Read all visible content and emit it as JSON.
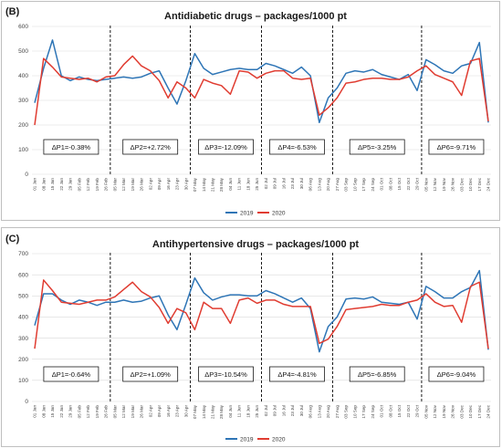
{
  "chart_data": [
    {
      "panel": "(B)",
      "type": "line",
      "title": "Antidiabetic drugs – packages/1000 pt",
      "ylim": [
        0,
        600
      ],
      "yticks": [
        0,
        100,
        200,
        300,
        400,
        500,
        600
      ],
      "grid": true,
      "legend": "bottom-center",
      "x": [
        "01 Jan",
        "08 Jan",
        "15 Jan",
        "22 Jan",
        "29 Jan",
        "05 Feb",
        "12 Feb",
        "19 Feb",
        "26 Feb",
        "05 Mar",
        "12 Mar",
        "19 Mar",
        "26 Mar",
        "02 Apr",
        "09 Apr",
        "16 Apr",
        "23 Apr",
        "30 Apr",
        "07 May",
        "14 May",
        "21 May",
        "28 May",
        "04 Jun",
        "11 Jun",
        "18 Jun",
        "25 Jun",
        "02 Jul",
        "09 Jul",
        "16 Jul",
        "23 Jul",
        "30 Jul",
        "06 Aug",
        "13 Aug",
        "20 Aug",
        "27 Aug",
        "03 Sep",
        "10 Sep",
        "17 Sep",
        "24 Sep",
        "01 Oct",
        "08 Oct",
        "15 Oct",
        "22 Oct",
        "29 Oct",
        "05 Nov",
        "12 Nov",
        "19 Nov",
        "26 Nov",
        "03 Dec",
        "10 Dec",
        "17 Dec",
        "24 Dec"
      ],
      "xticks_shown": [
        "01 Jan",
        "08 Jan",
        "15 Jan",
        "22 Jan",
        "29 Jan",
        "05 Feb",
        "12 Feb",
        "19 Feb",
        "26 Feb",
        "05 Mar",
        "12 Mar",
        "19 Mar",
        "26 Mar",
        "02 Apr",
        "09 Apr",
        "16 Apr",
        "23 Apr",
        "30 Apr",
        "07 May",
        "14 May",
        "21 May",
        "28 May",
        "04 Jun",
        "11 Jun",
        "18 Jun",
        "25 Jun",
        "02 Jul",
        "09 Jul",
        "16 Jul",
        "23 Jul",
        "30 Jul",
        "06 Aug",
        "13 Aug",
        "20 Aug",
        "27 Aug",
        "03 Sep",
        "10 Sep",
        "17 Sep",
        "24 Sep",
        "01 Oct",
        "08 Oct",
        "15 Oct",
        "22 Oct",
        "29 Oct",
        "05 Nov",
        "12 Nov",
        "19 Nov",
        "26 Nov",
        "03 Dec",
        "10 Dec",
        "17 Dec",
        "24 Dec"
      ],
      "series": [
        {
          "name": "2019",
          "color": "#2e75b6",
          "values": [
            290,
            430,
            545,
            400,
            380,
            395,
            385,
            380,
            385,
            390,
            395,
            390,
            395,
            410,
            420,
            350,
            285,
            380,
            490,
            430,
            405,
            415,
            425,
            430,
            425,
            425,
            450,
            440,
            425,
            410,
            435,
            400,
            210,
            310,
            350,
            410,
            420,
            415,
            425,
            405,
            395,
            385,
            405,
            340,
            465,
            445,
            420,
            410,
            440,
            450,
            535,
            210
          ]
        },
        {
          "name": "2020",
          "color": "#e03c31",
          "values": [
            200,
            470,
            435,
            395,
            390,
            385,
            390,
            375,
            395,
            400,
            445,
            480,
            440,
            420,
            380,
            310,
            375,
            350,
            310,
            385,
            370,
            360,
            325,
            420,
            415,
            390,
            410,
            420,
            420,
            390,
            385,
            390,
            240,
            270,
            310,
            370,
            375,
            385,
            390,
            390,
            385,
            385,
            395,
            420,
            440,
            405,
            390,
            375,
            320,
            460,
            470,
            215
          ]
        }
      ],
      "dividers_after": [
        "26 Feb",
        "30 Apr",
        "25 Jun",
        "20 Aug",
        "29 Oct"
      ],
      "period_labels": [
        "ΔP1=-0.38%",
        "ΔP2=+2.72%",
        "ΔP3=-12.09%",
        "ΔP4=-6.53%",
        "ΔP5=-3.25%",
        "ΔP6=-9.71%"
      ]
    },
    {
      "panel": "(C)",
      "type": "line",
      "title": "Antihypertensive drugs – packages/1000 pt",
      "ylim": [
        0,
        700
      ],
      "yticks": [
        0,
        100,
        200,
        300,
        400,
        500,
        600,
        700
      ],
      "grid": true,
      "legend": "bottom-center",
      "x": [
        "01 Jan",
        "08 Jan",
        "15 Jan",
        "22 Jan",
        "29 Jan",
        "05 Feb",
        "12 Feb",
        "19 Feb",
        "26 Feb",
        "05 Mar",
        "12 Mar",
        "19 Mar",
        "26 Mar",
        "02 Apr",
        "09 Apr",
        "16 Apr",
        "23 Apr",
        "30 Apr",
        "07 May",
        "14 May",
        "21 May",
        "28 May",
        "04 Jun",
        "11 Jun",
        "18 Jun",
        "25 Jun",
        "02 Jul",
        "09 Jul",
        "16 Jul",
        "23 Jul",
        "30 Jul",
        "06 Aug",
        "13 Aug",
        "20 Aug",
        "27 Aug",
        "03 Sep",
        "10 Sep",
        "17 Sep",
        "24 Sep",
        "01 Oct",
        "08 Oct",
        "15 Oct",
        "22 Oct",
        "29 Oct",
        "05 Nov",
        "12 Nov",
        "19 Nov",
        "26 Nov",
        "03 Dec",
        "10 Dec",
        "17 Dec",
        "24 Dec"
      ],
      "xticks_shown": [
        "01 Jan",
        "08 Jan",
        "15 Jan",
        "22 Jan",
        "29 Jan",
        "05 Feb",
        "12 Feb",
        "19 Feb",
        "26 Feb",
        "05 Mar",
        "12 Mar",
        "19 Mar",
        "26 Mar",
        "02 Apr",
        "09 Apr",
        "16 Apr",
        "23 Apr",
        "30 Apr",
        "07 May",
        "14 May",
        "21 May",
        "28 May",
        "04 Jun",
        "11 Jun",
        "18 Jun",
        "25 Jun",
        "02 Jul",
        "09 Jul",
        "16 Jul",
        "23 Jul",
        "30 Jul",
        "06 Aug",
        "13 Aug",
        "20 Aug",
        "27 Aug",
        "03 Sep",
        "10 Sep",
        "17 Sep",
        "24 Sep",
        "01 Oct",
        "08 Oct",
        "15 Oct",
        "22 Oct",
        "29 Oct",
        "05 Nov",
        "12 Nov",
        "19 Nov",
        "26 Nov",
        "03 Dec",
        "10 Dec",
        "17 Dec",
        "24 Dec"
      ],
      "series": [
        {
          "name": "2019",
          "color": "#2e75b6",
          "values": [
            360,
            510,
            510,
            480,
            460,
            480,
            470,
            455,
            470,
            470,
            480,
            470,
            475,
            490,
            500,
            410,
            340,
            460,
            585,
            515,
            480,
            495,
            505,
            505,
            500,
            500,
            525,
            510,
            490,
            470,
            490,
            440,
            235,
            355,
            400,
            485,
            490,
            485,
            495,
            470,
            465,
            460,
            470,
            390,
            545,
            520,
            490,
            490,
            520,
            540,
            620,
            245
          ]
        },
        {
          "name": "2020",
          "color": "#e03c31",
          "values": [
            250,
            575,
            525,
            470,
            465,
            460,
            470,
            480,
            480,
            495,
            530,
            565,
            520,
            495,
            445,
            370,
            440,
            420,
            340,
            470,
            440,
            440,
            370,
            480,
            490,
            465,
            480,
            480,
            460,
            450,
            450,
            450,
            275,
            295,
            355,
            435,
            440,
            445,
            450,
            460,
            455,
            455,
            470,
            480,
            510,
            470,
            450,
            455,
            375,
            545,
            565,
            250
          ]
        }
      ],
      "dividers_after": [
        "26 Feb",
        "30 Apr",
        "25 Jun",
        "20 Aug",
        "29 Oct"
      ],
      "period_labels": [
        "ΔP1=-0.64%",
        "ΔP2=+1.09%",
        "ΔP3=-10.54%",
        "ΔP4=-4.81%",
        "ΔP5=-6.85%",
        "ΔP6=-9.04%"
      ]
    }
  ]
}
